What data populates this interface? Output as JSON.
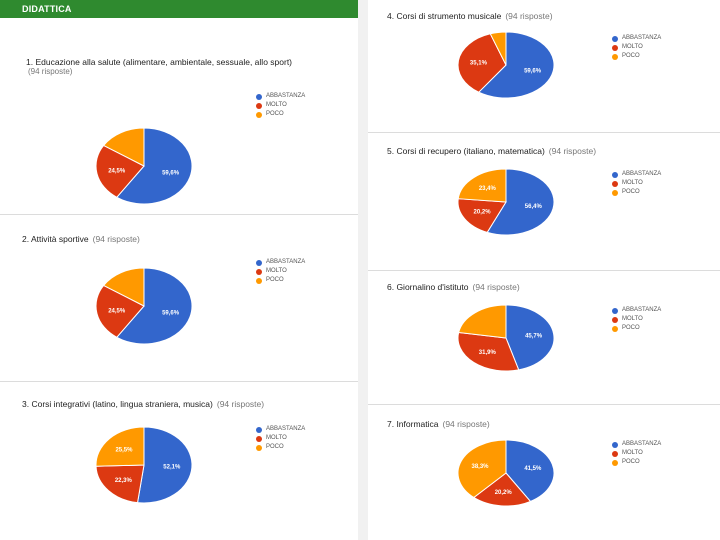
{
  "header": {
    "title": "DIDATTICA"
  },
  "legend_labels": [
    "ABBASTANZA",
    "MOLTO",
    "POCO"
  ],
  "colors": {
    "abbastanza": "#3366cc",
    "molto": "#dc3912",
    "poco": "#ff9900",
    "header": "#2f8a2f"
  },
  "panels": [
    {
      "title": "1. Educazione alla salute (alimentare, ambientale, sessuale, allo sport)",
      "count": "",
      "sub": "(94 risposte)"
    },
    {
      "title": "2. Attività sportive",
      "count": "(94 risposte)",
      "sub": ""
    },
    {
      "title": "3. Corsi integrativi (latino, lingua straniera, musica)",
      "count": "(94 risposte)",
      "sub": ""
    },
    {
      "title": "4. Corsi di strumento musicale",
      "count": "(94 risposte)",
      "sub": ""
    },
    {
      "title": "5. Corsi di recupero (italiano, matematica)",
      "count": "(94 risposte)",
      "sub": ""
    },
    {
      "title": "6. Giornalino d'istituto",
      "count": "(94 risposte)",
      "sub": ""
    },
    {
      "title": "7. Informatica",
      "count": "(94 risposte)",
      "sub": ""
    }
  ],
  "chart_data": [
    {
      "type": "pie",
      "categories": [
        "ABBASTANZA",
        "MOLTO",
        "POCO"
      ],
      "values": [
        59.6,
        24.5,
        15.9
      ],
      "labels": [
        "59,6%",
        "24,5%",
        ""
      ]
    },
    {
      "type": "pie",
      "categories": [
        "ABBASTANZA",
        "MOLTO",
        "POCO"
      ],
      "values": [
        59.6,
        24.5,
        15.9
      ],
      "labels": [
        "59,6%",
        "24,5%",
        ""
      ]
    },
    {
      "type": "pie",
      "categories": [
        "ABBASTANZA",
        "MOLTO",
        "POCO"
      ],
      "values": [
        52.1,
        22.3,
        25.5
      ],
      "labels": [
        "52,1%",
        "22,3%",
        "25,5%"
      ]
    },
    {
      "type": "pie",
      "categories": [
        "ABBASTANZA",
        "MOLTO",
        "POCO"
      ],
      "values": [
        59.6,
        35.1,
        5.3
      ],
      "labels": [
        "59,6%",
        "35,1%",
        ""
      ]
    },
    {
      "type": "pie",
      "categories": [
        "ABBASTANZA",
        "MOLTO",
        "POCO"
      ],
      "values": [
        56.4,
        20.2,
        23.4
      ],
      "labels": [
        "56,4%",
        "20,2%",
        "23,4%"
      ]
    },
    {
      "type": "pie",
      "categories": [
        "ABBASTANZA",
        "MOLTO",
        "POCO"
      ],
      "values": [
        45.7,
        31.9,
        22.3
      ],
      "labels": [
        "45,7%",
        "31,9%",
        ""
      ]
    },
    {
      "type": "pie",
      "categories": [
        "ABBASTANZA",
        "MOLTO",
        "POCO"
      ],
      "values": [
        41.5,
        20.2,
        38.3
      ],
      "labels": [
        "41,5%",
        "20,2%",
        "38,3%"
      ]
    }
  ]
}
